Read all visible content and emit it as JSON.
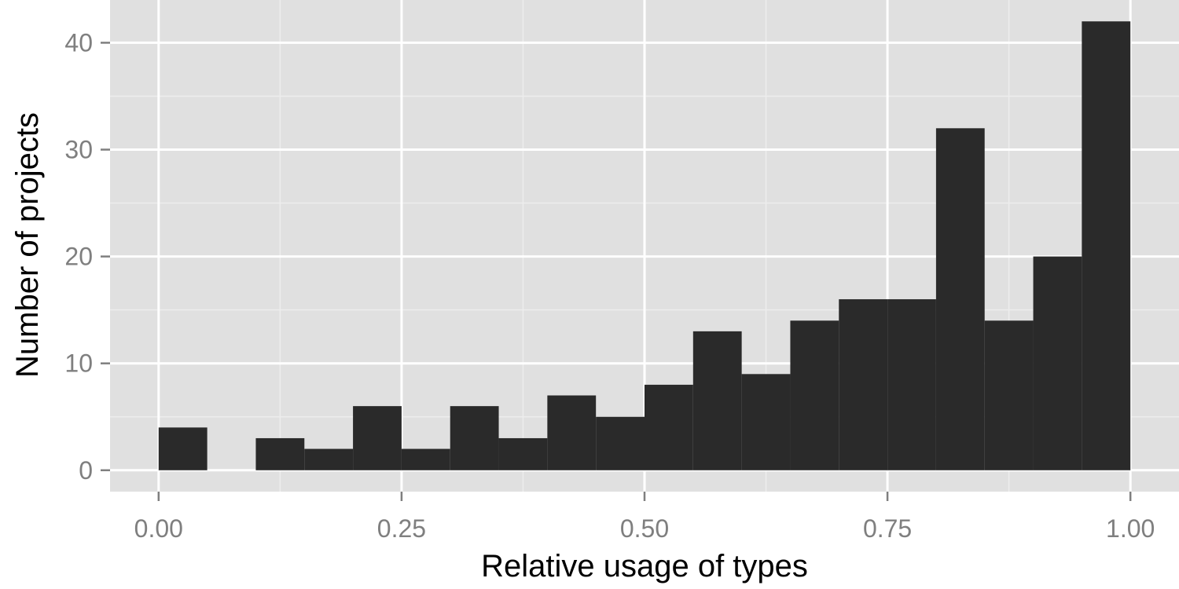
{
  "chart_data": {
    "type": "bar",
    "title": "",
    "xlabel": "Relative usage of types",
    "ylabel": "Number of projects",
    "xlim": [
      -0.05,
      1.05
    ],
    "ylim": [
      -2,
      44
    ],
    "x_ticks": [
      0,
      0.25,
      0.5,
      0.75,
      1
    ],
    "x_tick_labels": [
      "0.00",
      "0.25",
      "0.50",
      "0.75",
      "1.00"
    ],
    "y_ticks": [
      0,
      10,
      20,
      30,
      40
    ],
    "y_tick_labels": [
      "0",
      "10",
      "20",
      "30",
      "40"
    ],
    "bin_width": 0.05,
    "bins": [
      {
        "start": 0.0,
        "count": 4
      },
      {
        "start": 0.05,
        "count": 0
      },
      {
        "start": 0.1,
        "count": 3
      },
      {
        "start": 0.15,
        "count": 2
      },
      {
        "start": 0.2,
        "count": 6
      },
      {
        "start": 0.25,
        "count": 2
      },
      {
        "start": 0.3,
        "count": 6
      },
      {
        "start": 0.35,
        "count": 3
      },
      {
        "start": 0.4,
        "count": 7
      },
      {
        "start": 0.45,
        "count": 5
      },
      {
        "start": 0.5,
        "count": 8
      },
      {
        "start": 0.55,
        "count": 13
      },
      {
        "start": 0.6,
        "count": 9
      },
      {
        "start": 0.65,
        "count": 14
      },
      {
        "start": 0.7,
        "count": 16
      },
      {
        "start": 0.75,
        "count": 16
      },
      {
        "start": 0.8,
        "count": 32
      },
      {
        "start": 0.85,
        "count": 14
      },
      {
        "start": 0.9,
        "count": 20
      },
      {
        "start": 0.95,
        "count": 42
      }
    ],
    "grid": true,
    "colors": {
      "panel_background": "#e0e0e0",
      "grid_major": "#ffffff",
      "grid_minor": "#ededed",
      "bar_fill": "#2a2a2a",
      "tick_text": "#7f7f7f",
      "tick_mark": "#7f7f7f",
      "axis_title": "#000000"
    }
  }
}
